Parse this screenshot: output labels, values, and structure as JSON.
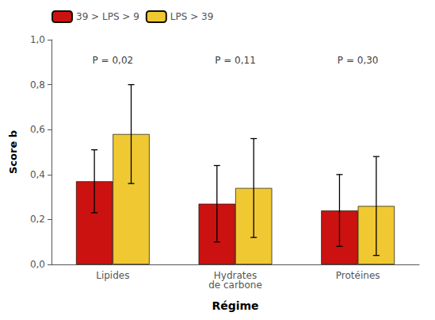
{
  "chart_data": {
    "type": "bar",
    "xlabel": "Régime",
    "ylabel": "Score b",
    "categories": [
      "Lipides",
      "Hydrates\nde carbone",
      "Protéines"
    ],
    "series": [
      {
        "name": "39 > LPS > 9",
        "color": "#cc1111",
        "values": [
          0.37,
          0.27,
          0.24
        ],
        "errors": [
          0.14,
          0.17,
          0.16
        ]
      },
      {
        "name": "LPS > 39",
        "color": "#f0c832",
        "values": [
          0.58,
          0.34,
          0.26
        ],
        "errors": [
          0.22,
          0.22,
          0.22
        ]
      }
    ],
    "annotations": [
      {
        "text": "P = 0,02",
        "x": "Lipides",
        "y": 0.87
      },
      {
        "text": "P = 0,11",
        "x": "Hydrates\nde carbone",
        "y": 0.87
      },
      {
        "text": "P = 0,30",
        "x": "Protéines",
        "y": 0.87
      }
    ],
    "ylim": [
      0,
      1.0
    ],
    "yticks": [
      {
        "value": 0.0,
        "label": "0,0"
      },
      {
        "value": 0.2,
        "label": "0,2"
      },
      {
        "value": 0.4,
        "label": "0,4"
      },
      {
        "value": 0.6,
        "label": "0,6"
      },
      {
        "value": 0.8,
        "label": "0,8"
      },
      {
        "value": 1.0,
        "label": "1,0"
      }
    ],
    "grid": false,
    "legend": "upper left"
  }
}
